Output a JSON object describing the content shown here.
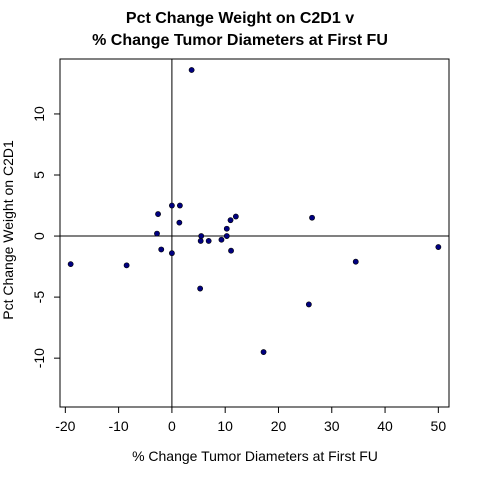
{
  "chart_data": {
    "type": "scatter",
    "title": "Pct Change Weight on C2D1 v",
    "subtitle": "% Change Tumor Diameters at First FU",
    "xlabel": "% Change Tumor Diameters at First FU",
    "ylabel": "Pct Change Weight on C2D1",
    "xlim": [
      -21,
      52
    ],
    "ylim": [
      -14,
      14.5
    ],
    "xticks": [
      -20,
      -10,
      0,
      10,
      20,
      30,
      40,
      50
    ],
    "yticks": [
      -10,
      -5,
      0,
      5,
      10
    ],
    "xtick_labels": [
      "-20",
      "-10",
      "0",
      "10",
      "20",
      "30",
      "40",
      "50"
    ],
    "ytick_labels": [
      "-10",
      "-5",
      "0",
      "5",
      "10"
    ],
    "reference_lines": {
      "x": 0,
      "y": 0
    },
    "point_color": "#000080",
    "points": [
      {
        "x": 3.7,
        "y": 13.6
      },
      {
        "x": -2.6,
        "y": 1.8
      },
      {
        "x": 0.0,
        "y": 2.5
      },
      {
        "x": 1.5,
        "y": 2.5
      },
      {
        "x": -2.8,
        "y": 0.2
      },
      {
        "x": 1.4,
        "y": 1.1
      },
      {
        "x": 12.0,
        "y": 1.6
      },
      {
        "x": 11.0,
        "y": 1.3
      },
      {
        "x": 26.3,
        "y": 1.5
      },
      {
        "x": 10.3,
        "y": 0.6
      },
      {
        "x": 10.3,
        "y": 0.0
      },
      {
        "x": 5.5,
        "y": 0.0
      },
      {
        "x": 5.4,
        "y": -0.4
      },
      {
        "x": 6.9,
        "y": -0.4
      },
      {
        "x": 9.3,
        "y": -0.3
      },
      {
        "x": -2.0,
        "y": -1.1
      },
      {
        "x": 0.0,
        "y": -1.4
      },
      {
        "x": 11.1,
        "y": -1.2
      },
      {
        "x": 50.0,
        "y": -0.9
      },
      {
        "x": 34.5,
        "y": -2.1
      },
      {
        "x": -19.0,
        "y": -2.3
      },
      {
        "x": -8.5,
        "y": -2.4
      },
      {
        "x": 5.3,
        "y": -4.3
      },
      {
        "x": 25.7,
        "y": -5.6
      },
      {
        "x": 17.2,
        "y": -9.5
      }
    ]
  }
}
